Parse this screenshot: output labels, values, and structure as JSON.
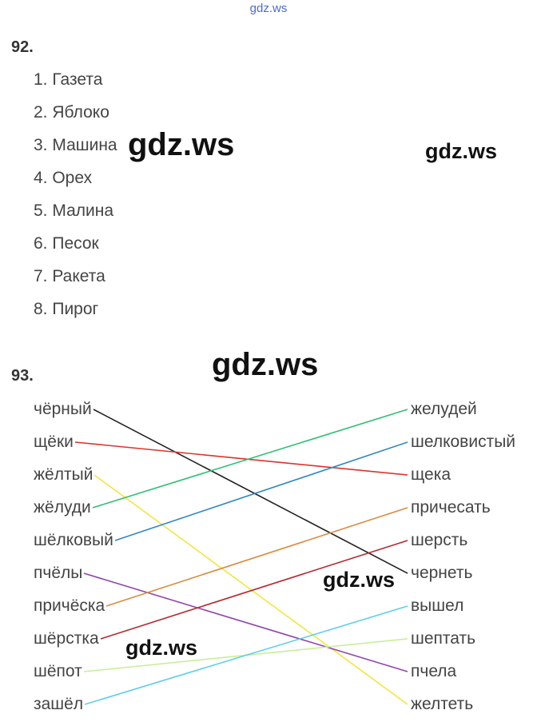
{
  "header": {
    "watermark": "gdz.ws"
  },
  "exercises": {
    "ex92": {
      "number": "92.",
      "items": [
        "1. Газета",
        "2. Яблоко",
        "3. Машина",
        "4. Орех",
        "5. Малина",
        "6. Песок",
        "7. Ракета",
        "8. Пирог"
      ]
    },
    "ex93": {
      "number": "93.",
      "left_words": [
        "чёрный",
        "щёки",
        "жёлтый",
        "жёлуди",
        "шёлковый",
        "пчёлы",
        "причёска",
        "шёрстка",
        "шёпот",
        "зашёл"
      ],
      "right_words": [
        "желудей",
        "шелковистый",
        "щека",
        "причесать",
        "шерсть",
        "чернеть",
        "вышел",
        "шептать",
        "пчела",
        "желтеть"
      ],
      "connections": [
        {
          "from": 0,
          "to": 5,
          "color": "#222222"
        },
        {
          "from": 1,
          "to": 2,
          "color": "#d9342b"
        },
        {
          "from": 2,
          "to": 9,
          "color": "#f2e640"
        },
        {
          "from": 3,
          "to": 0,
          "color": "#2fbf72"
        },
        {
          "from": 4,
          "to": 1,
          "color": "#2f86c2"
        },
        {
          "from": 5,
          "to": 8,
          "color": "#8e44ad"
        },
        {
          "from": 6,
          "to": 3,
          "color": "#d98a3d"
        },
        {
          "from": 7,
          "to": 4,
          "color": "#b3282d"
        },
        {
          "from": 8,
          "to": 7,
          "color": "#c8ef9a"
        },
        {
          "from": 9,
          "to": 6,
          "color": "#5ecfe8"
        }
      ]
    }
  },
  "watermarks": [
    "gdz.ws",
    "gdz.ws",
    "gdz.ws",
    "gdz.ws",
    "gdz.ws"
  ]
}
